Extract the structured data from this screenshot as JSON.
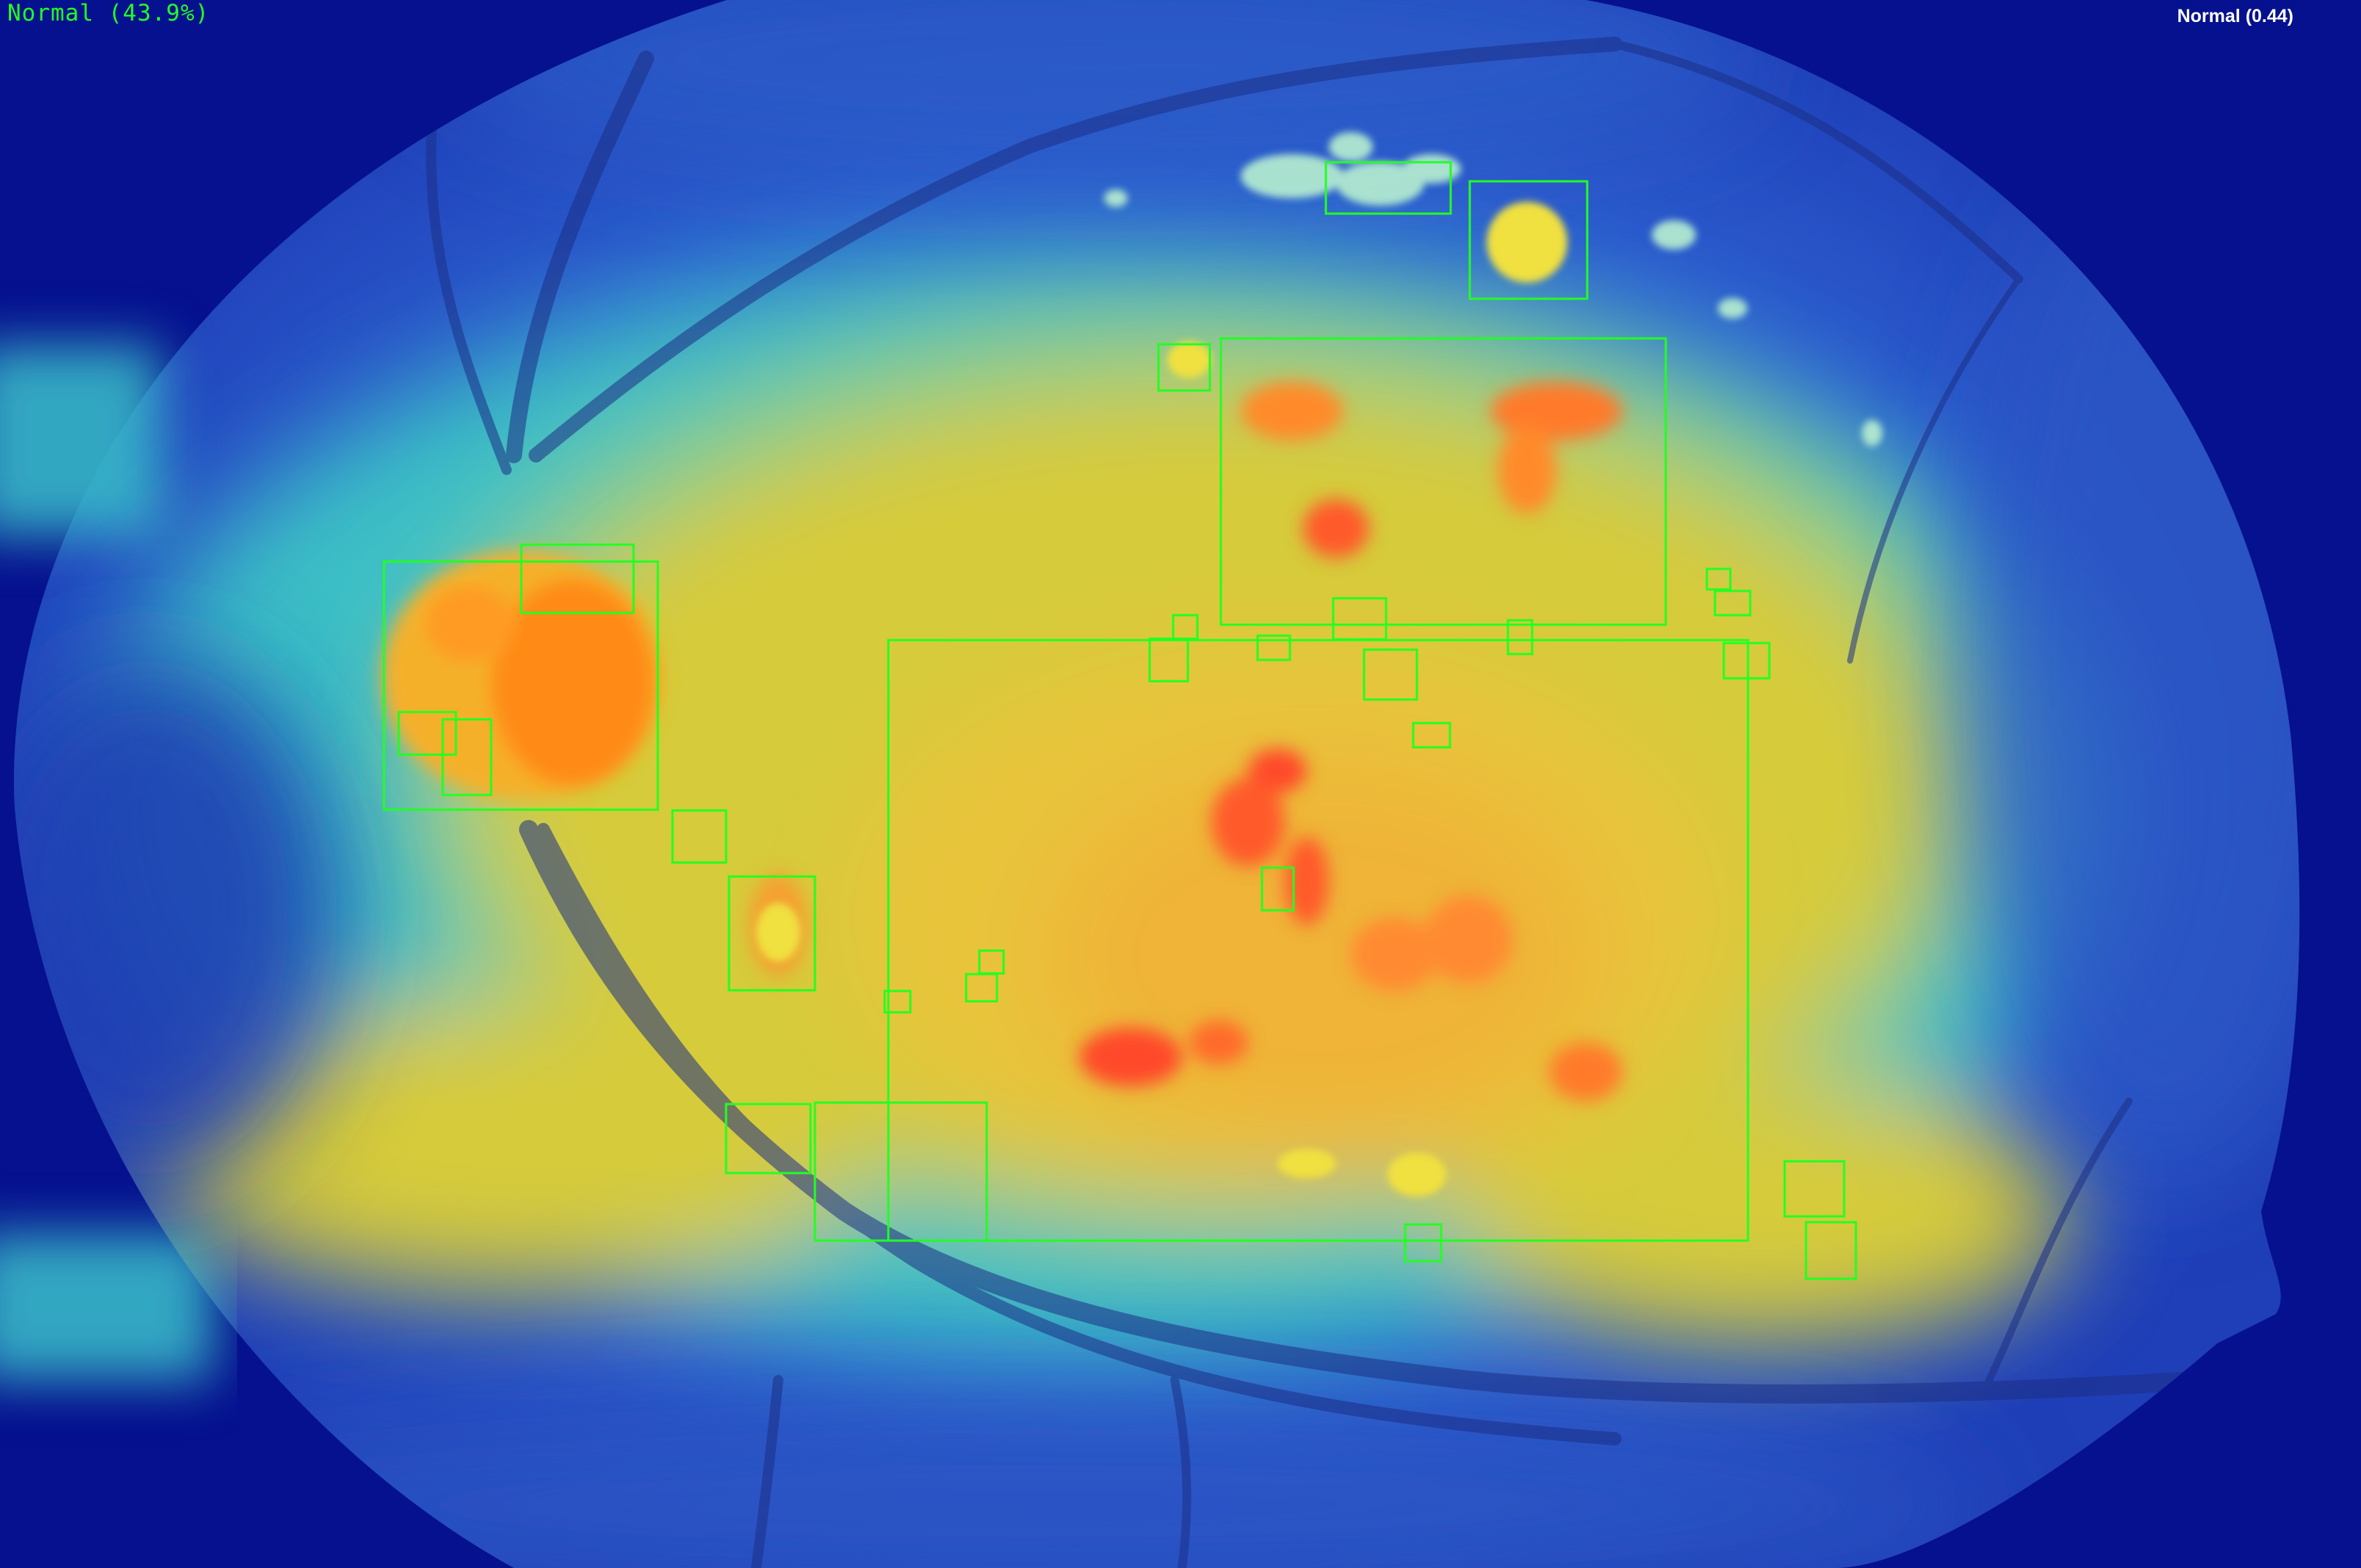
{
  "overlay": {
    "prediction_label_left": "Normal (43.9%)",
    "prediction_label_right": "Normal (0.44)"
  },
  "colors": {
    "background": "#06118f",
    "fundus_blue": "#2550c8",
    "heat_cyan": "#3cc4c4",
    "heat_yellow": "#e2cc2c",
    "heat_orange": "#ff8c1a",
    "heat_red": "#ff4a2a",
    "box_outline": "#22ff22",
    "vessel": "#1c2f86"
  },
  "detections": {
    "box_count": 34,
    "box_color_name": "green outline"
  }
}
